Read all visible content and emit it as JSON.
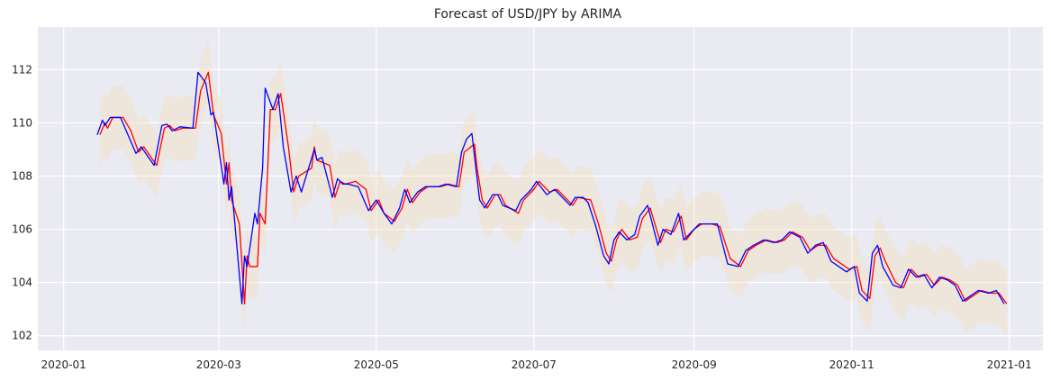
{
  "chart_data": {
    "type": "line",
    "title": "Forecast of USD/JPY by ARIMA",
    "xlabel": "",
    "ylabel": "",
    "x_ticks": [
      "2020-01",
      "2020-03",
      "2020-05",
      "2020-07",
      "2020-09",
      "2020-11",
      "2021-01"
    ],
    "y_ticks": [
      "102",
      "104",
      "106",
      "108",
      "110",
      "112"
    ],
    "xlim": [
      "2019-12-22",
      "2021-01-14"
    ],
    "ylim": [
      101.45,
      113.6
    ],
    "grid": true,
    "background": "#eaeaf2",
    "series": [
      {
        "color": "#0000ff",
        "role": "actual",
        "points": [
          [
            "2020-01-14",
            109.55
          ],
          [
            "2020-01-16",
            110.1
          ],
          [
            "2020-01-17",
            109.9
          ],
          [
            "2020-01-19",
            110.2
          ],
          [
            "2020-01-23",
            110.2
          ],
          [
            "2020-01-29",
            108.85
          ],
          [
            "2020-01-31",
            109.1
          ],
          [
            "2020-02-05",
            108.4
          ],
          [
            "2020-02-08",
            109.9
          ],
          [
            "2020-02-10",
            109.95
          ],
          [
            "2020-02-12",
            109.7
          ],
          [
            "2020-02-15",
            109.85
          ],
          [
            "2020-02-20",
            109.8
          ],
          [
            "2020-02-22",
            111.9
          ],
          [
            "2020-02-25",
            111.5
          ],
          [
            "2020-02-27",
            110.3
          ],
          [
            "2020-02-28",
            110.4
          ],
          [
            "2020-03-03",
            107.7
          ],
          [
            "2020-03-04",
            108.5
          ],
          [
            "2020-03-05",
            107.1
          ],
          [
            "2020-03-06",
            107.6
          ],
          [
            "2020-03-10",
            103.2
          ],
          [
            "2020-03-11",
            105.0
          ],
          [
            "2020-03-12",
            104.6
          ],
          [
            "2020-03-15",
            106.6
          ],
          [
            "2020-03-16",
            106.2
          ],
          [
            "2020-03-18",
            108.3
          ],
          [
            "2020-03-19",
            111.3
          ],
          [
            "2020-03-22",
            110.5
          ],
          [
            "2020-03-24",
            111.1
          ],
          [
            "2020-03-26",
            109.1
          ],
          [
            "2020-03-29",
            107.4
          ],
          [
            "2020-03-31",
            108.0
          ],
          [
            "2020-04-02",
            107.4
          ],
          [
            "2020-04-07",
            109.0
          ],
          [
            "2020-04-08",
            108.6
          ],
          [
            "2020-04-10",
            108.7
          ],
          [
            "2020-04-14",
            107.2
          ],
          [
            "2020-04-16",
            107.9
          ],
          [
            "2020-04-18",
            107.7
          ],
          [
            "2020-04-20",
            107.7
          ],
          [
            "2020-04-24",
            107.6
          ],
          [
            "2020-04-28",
            106.7
          ],
          [
            "2020-05-01",
            107.1
          ],
          [
            "2020-05-04",
            106.6
          ],
          [
            "2020-05-07",
            106.2
          ],
          [
            "2020-05-10",
            106.8
          ],
          [
            "2020-05-12",
            107.5
          ],
          [
            "2020-05-14",
            107.0
          ],
          [
            "2020-05-17",
            107.4
          ],
          [
            "2020-05-20",
            107.6
          ],
          [
            "2020-05-25",
            107.6
          ],
          [
            "2020-05-28",
            107.7
          ],
          [
            "2020-06-01",
            107.6
          ],
          [
            "2020-06-03",
            108.9
          ],
          [
            "2020-06-05",
            109.4
          ],
          [
            "2020-06-07",
            109.6
          ],
          [
            "2020-06-10",
            107.1
          ],
          [
            "2020-06-12",
            106.8
          ],
          [
            "2020-06-15",
            107.3
          ],
          [
            "2020-06-17",
            107.3
          ],
          [
            "2020-06-19",
            106.9
          ],
          [
            "2020-06-24",
            106.7
          ],
          [
            "2020-06-26",
            107.1
          ],
          [
            "2020-06-30",
            107.5
          ],
          [
            "2020-07-02",
            107.8
          ],
          [
            "2020-07-06",
            107.3
          ],
          [
            "2020-07-09",
            107.5
          ],
          [
            "2020-07-12",
            107.2
          ],
          [
            "2020-07-15",
            106.9
          ],
          [
            "2020-07-17",
            107.2
          ],
          [
            "2020-07-20",
            107.2
          ],
          [
            "2020-07-22",
            107.0
          ],
          [
            "2020-07-25",
            106.1
          ],
          [
            "2020-07-28",
            105.0
          ],
          [
            "2020-07-30",
            104.7
          ],
          [
            "2020-08-01",
            105.6
          ],
          [
            "2020-08-03",
            105.9
          ],
          [
            "2020-08-06",
            105.6
          ],
          [
            "2020-08-09",
            105.8
          ],
          [
            "2020-08-11",
            106.5
          ],
          [
            "2020-08-14",
            106.9
          ],
          [
            "2020-08-18",
            105.4
          ],
          [
            "2020-08-20",
            106.0
          ],
          [
            "2020-08-23",
            105.8
          ],
          [
            "2020-08-26",
            106.6
          ],
          [
            "2020-08-28",
            105.6
          ],
          [
            "2020-08-31",
            105.9
          ],
          [
            "2020-09-03",
            106.2
          ],
          [
            "2020-09-07",
            106.2
          ],
          [
            "2020-09-10",
            106.2
          ],
          [
            "2020-09-14",
            104.7
          ],
          [
            "2020-09-18",
            104.6
          ],
          [
            "2020-09-21",
            105.2
          ],
          [
            "2020-09-24",
            105.4
          ],
          [
            "2020-09-28",
            105.6
          ],
          [
            "2020-10-02",
            105.5
          ],
          [
            "2020-10-05",
            105.6
          ],
          [
            "2020-10-08",
            105.9
          ],
          [
            "2020-10-12",
            105.7
          ],
          [
            "2020-10-15",
            105.1
          ],
          [
            "2020-10-18",
            105.4
          ],
          [
            "2020-10-21",
            105.5
          ],
          [
            "2020-10-24",
            104.8
          ],
          [
            "2020-10-27",
            104.6
          ],
          [
            "2020-10-30",
            104.4
          ],
          [
            "2020-11-02",
            104.6
          ],
          [
            "2020-11-04",
            103.6
          ],
          [
            "2020-11-07",
            103.3
          ],
          [
            "2020-11-09",
            105.1
          ],
          [
            "2020-11-11",
            105.4
          ],
          [
            "2020-11-13",
            104.6
          ],
          [
            "2020-11-17",
            103.9
          ],
          [
            "2020-11-20",
            103.8
          ],
          [
            "2020-11-23",
            104.5
          ],
          [
            "2020-11-26",
            104.2
          ],
          [
            "2020-11-29",
            104.3
          ],
          [
            "2020-12-02",
            103.8
          ],
          [
            "2020-12-05",
            104.2
          ],
          [
            "2020-12-08",
            104.1
          ],
          [
            "2020-12-11",
            103.9
          ],
          [
            "2020-12-14",
            103.3
          ],
          [
            "2020-12-17",
            103.5
          ],
          [
            "2020-12-20",
            103.7
          ],
          [
            "2020-12-24",
            103.6
          ],
          [
            "2020-12-27",
            103.7
          ],
          [
            "2020-12-30",
            103.2
          ]
        ]
      },
      {
        "color": "#ff0000",
        "role": "forecast",
        "points": [
          [
            "2020-01-15",
            109.55
          ],
          [
            "2020-01-17",
            110.0
          ],
          [
            "2020-01-18",
            109.8
          ],
          [
            "2020-01-20",
            110.2
          ],
          [
            "2020-01-24",
            110.2
          ],
          [
            "2020-01-27",
            109.7
          ],
          [
            "2020-01-30",
            108.9
          ],
          [
            "2020-02-01",
            109.1
          ],
          [
            "2020-02-06",
            108.4
          ],
          [
            "2020-02-09",
            109.8
          ],
          [
            "2020-02-11",
            109.9
          ],
          [
            "2020-02-13",
            109.7
          ],
          [
            "2020-02-16",
            109.8
          ],
          [
            "2020-02-21",
            109.8
          ],
          [
            "2020-02-23",
            111.2
          ],
          [
            "2020-02-26",
            111.9
          ],
          [
            "2020-02-28",
            110.3
          ],
          [
            "2020-03-02",
            109.6
          ],
          [
            "2020-03-04",
            107.7
          ],
          [
            "2020-03-05",
            108.5
          ],
          [
            "2020-03-06",
            107.1
          ],
          [
            "2020-03-09",
            106.2
          ],
          [
            "2020-03-11",
            103.2
          ],
          [
            "2020-03-12",
            105.0
          ],
          [
            "2020-03-13",
            104.6
          ],
          [
            "2020-03-16",
            104.6
          ],
          [
            "2020-03-17",
            106.6
          ],
          [
            "2020-03-19",
            106.2
          ],
          [
            "2020-03-21",
            110.5
          ],
          [
            "2020-03-23",
            110.5
          ],
          [
            "2020-03-25",
            111.1
          ],
          [
            "2020-03-28",
            109.1
          ],
          [
            "2020-03-30",
            107.4
          ],
          [
            "2020-04-01",
            108.0
          ],
          [
            "2020-04-06",
            108.3
          ],
          [
            "2020-04-07",
            109.1
          ],
          [
            "2020-04-08",
            108.6
          ],
          [
            "2020-04-13",
            108.4
          ],
          [
            "2020-04-15",
            107.2
          ],
          [
            "2020-04-17",
            107.8
          ],
          [
            "2020-04-19",
            107.7
          ],
          [
            "2020-04-23",
            107.8
          ],
          [
            "2020-04-27",
            107.5
          ],
          [
            "2020-04-29",
            106.7
          ],
          [
            "2020-05-02",
            107.1
          ],
          [
            "2020-05-04",
            106.6
          ],
          [
            "2020-05-08",
            106.3
          ],
          [
            "2020-05-11",
            106.8
          ],
          [
            "2020-05-13",
            107.5
          ],
          [
            "2020-05-15",
            107.0
          ],
          [
            "2020-05-18",
            107.4
          ],
          [
            "2020-05-21",
            107.6
          ],
          [
            "2020-05-26",
            107.6
          ],
          [
            "2020-05-29",
            107.7
          ],
          [
            "2020-06-02",
            107.6
          ],
          [
            "2020-06-04",
            108.9
          ],
          [
            "2020-06-08",
            109.2
          ],
          [
            "2020-06-09",
            108.3
          ],
          [
            "2020-06-11",
            107.1
          ],
          [
            "2020-06-13",
            106.8
          ],
          [
            "2020-06-16",
            107.3
          ],
          [
            "2020-06-18",
            107.3
          ],
          [
            "2020-06-20",
            106.9
          ],
          [
            "2020-06-25",
            106.6
          ],
          [
            "2020-06-27",
            107.1
          ],
          [
            "2020-07-01",
            107.5
          ],
          [
            "2020-07-03",
            107.8
          ],
          [
            "2020-07-07",
            107.4
          ],
          [
            "2020-07-10",
            107.5
          ],
          [
            "2020-07-13",
            107.2
          ],
          [
            "2020-07-16",
            106.9
          ],
          [
            "2020-07-18",
            107.2
          ],
          [
            "2020-07-23",
            107.1
          ],
          [
            "2020-07-26",
            106.2
          ],
          [
            "2020-07-29",
            105.1
          ],
          [
            "2020-07-31",
            104.8
          ],
          [
            "2020-08-02",
            105.6
          ],
          [
            "2020-08-04",
            106.0
          ],
          [
            "2020-08-07",
            105.6
          ],
          [
            "2020-08-10",
            105.7
          ],
          [
            "2020-08-12",
            106.4
          ],
          [
            "2020-08-15",
            106.8
          ],
          [
            "2020-08-19",
            105.5
          ],
          [
            "2020-08-21",
            106.0
          ],
          [
            "2020-08-24",
            105.9
          ],
          [
            "2020-08-27",
            106.5
          ],
          [
            "2020-08-29",
            105.6
          ],
          [
            "2020-09-01",
            106.0
          ],
          [
            "2020-09-04",
            106.2
          ],
          [
            "2020-09-08",
            106.2
          ],
          [
            "2020-09-11",
            106.1
          ],
          [
            "2020-09-15",
            104.9
          ],
          [
            "2020-09-19",
            104.6
          ],
          [
            "2020-09-22",
            105.2
          ],
          [
            "2020-09-25",
            105.4
          ],
          [
            "2020-09-29",
            105.6
          ],
          [
            "2020-10-03",
            105.5
          ],
          [
            "2020-10-06",
            105.6
          ],
          [
            "2020-10-09",
            105.9
          ],
          [
            "2020-10-13",
            105.7
          ],
          [
            "2020-10-16",
            105.2
          ],
          [
            "2020-10-19",
            105.4
          ],
          [
            "2020-10-22",
            105.4
          ],
          [
            "2020-10-25",
            104.9
          ],
          [
            "2020-10-28",
            104.7
          ],
          [
            "2020-10-31",
            104.5
          ],
          [
            "2020-11-03",
            104.6
          ],
          [
            "2020-11-05",
            103.7
          ],
          [
            "2020-11-08",
            103.4
          ],
          [
            "2020-11-10",
            105.0
          ],
          [
            "2020-11-12",
            105.3
          ],
          [
            "2020-11-14",
            104.8
          ],
          [
            "2020-11-18",
            104.0
          ],
          [
            "2020-11-21",
            103.8
          ],
          [
            "2020-11-24",
            104.5
          ],
          [
            "2020-11-27",
            104.2
          ],
          [
            "2020-11-30",
            104.3
          ],
          [
            "2020-12-03",
            103.9
          ],
          [
            "2020-12-06",
            104.2
          ],
          [
            "2020-12-09",
            104.1
          ],
          [
            "2020-12-12",
            103.9
          ],
          [
            "2020-12-15",
            103.3
          ],
          [
            "2020-12-18",
            103.5
          ],
          [
            "2020-12-21",
            103.7
          ],
          [
            "2020-12-25",
            103.6
          ],
          [
            "2020-12-28",
            103.6
          ],
          [
            "2020-12-31",
            103.2
          ]
        ]
      }
    ],
    "confidence_band": {
      "color": "#f5deb3",
      "opacity": 0.35,
      "half_width": 1.2
    }
  }
}
